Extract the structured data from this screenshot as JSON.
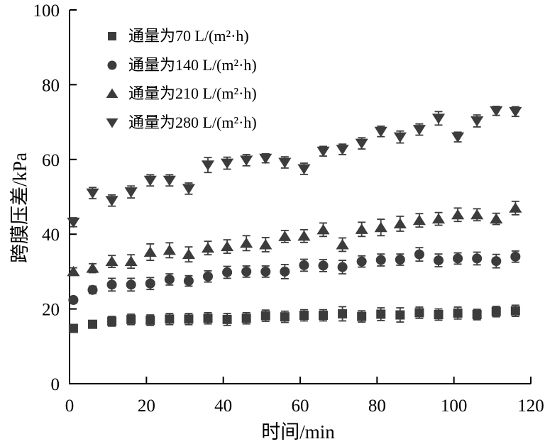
{
  "figure": {
    "background": "#ffffff",
    "axis_color": "#000000",
    "marker_color": "#3c3c3c"
  },
  "chart_data": {
    "type": "scatter",
    "title": "",
    "xlabel": "时间/min",
    "ylabel": "跨膜压差/kPa",
    "xlim": [
      0,
      120
    ],
    "ylim": [
      0,
      100
    ],
    "x_ticks": [
      0,
      20,
      40,
      60,
      80,
      100,
      120
    ],
    "y_ticks": [
      0,
      20,
      40,
      60,
      80,
      100
    ],
    "grid": false,
    "error_bars": true,
    "legend_position": "upper-left-inside",
    "x": [
      1,
      6,
      11,
      16,
      21,
      26,
      31,
      36,
      41,
      46,
      51,
      56,
      61,
      66,
      71,
      76,
      81,
      86,
      91,
      96,
      101,
      106,
      111,
      116
    ],
    "series": [
      {
        "name": "通量为70 L/(m²·h)",
        "marker": "square",
        "values": [
          14.8,
          15.9,
          16.7,
          17.2,
          17.0,
          17.3,
          17.3,
          17.5,
          17.2,
          17.5,
          18.2,
          17.9,
          18.3,
          18.3,
          18.7,
          18.0,
          18.6,
          18.4,
          19.0,
          18.5,
          18.9,
          18.5,
          19.3,
          19.5
        ],
        "errors": [
          0.7,
          0.9,
          1.3,
          1.4,
          1.4,
          1.5,
          1.5,
          1.5,
          1.6,
          1.5,
          1.5,
          1.5,
          1.5,
          1.5,
          1.9,
          1.5,
          1.7,
          1.9,
          1.5,
          1.5,
          1.6,
          1.4,
          1.4,
          1.5
        ]
      },
      {
        "name": "通量为140 L/(m²·h)",
        "marker": "circle",
        "values": [
          22.4,
          25.1,
          26.5,
          26.5,
          26.8,
          27.9,
          27.5,
          28.7,
          29.8,
          30.0,
          30.0,
          30.0,
          31.7,
          31.6,
          31.2,
          32.7,
          33.1,
          33.2,
          34.6,
          33.0,
          33.5,
          33.5,
          32.8,
          34.0
        ],
        "errors": [
          0.8,
          1.0,
          1.7,
          1.7,
          1.6,
          1.5,
          1.4,
          1.5,
          1.6,
          1.5,
          1.5,
          1.9,
          1.6,
          1.6,
          1.8,
          1.5,
          1.6,
          1.5,
          1.8,
          1.7,
          1.5,
          1.7,
          1.8,
          1.5
        ]
      },
      {
        "name": "通量为210 L/(m²·h)",
        "marker": "triangle-up",
        "values": [
          30.0,
          30.9,
          32.7,
          32.7,
          35.2,
          35.7,
          34.6,
          36.3,
          36.7,
          37.6,
          37.2,
          39.4,
          39.5,
          41.2,
          37.2,
          41.3,
          41.8,
          42.8,
          43.7,
          44.1,
          45.2,
          45.2,
          44.1,
          47.0
        ],
        "errors": [
          1.0,
          1.2,
          1.6,
          1.8,
          2.2,
          2.0,
          2.0,
          1.8,
          1.8,
          2.0,
          1.9,
          1.6,
          1.7,
          1.8,
          1.8,
          1.9,
          2.2,
          2.0,
          1.8,
          1.7,
          1.8,
          1.6,
          1.5,
          1.8
        ]
      },
      {
        "name": "通量为280 L/(m²·h)",
        "marker": "triangle-down",
        "values": [
          43.2,
          51.0,
          49.0,
          51.3,
          54.4,
          54.4,
          52.2,
          58.5,
          59.0,
          59.8,
          60.3,
          59.2,
          57.5,
          62.2,
          62.7,
          64.3,
          67.5,
          66.0,
          68.0,
          71.0,
          66.0,
          70.3,
          73.0,
          72.8
        ],
        "errors": [
          1.2,
          1.5,
          1.5,
          1.6,
          1.5,
          1.5,
          1.5,
          2.0,
          1.6,
          1.5,
          1.2,
          1.5,
          1.5,
          1.3,
          1.4,
          1.5,
          1.4,
          1.6,
          1.5,
          1.8,
          1.3,
          1.6,
          1.2,
          1.3
        ]
      }
    ]
  }
}
